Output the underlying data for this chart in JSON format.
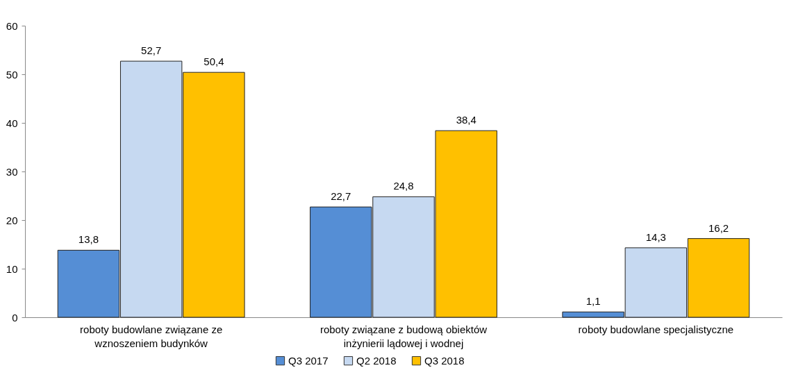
{
  "chart_data": {
    "type": "bar",
    "categories": [
      "roboty budowlane związane ze wznoszeniem budynków",
      "roboty związane z budową obiektów inżynierii lądowej i wodnej",
      "roboty budowlane specjalistyczne"
    ],
    "series": [
      {
        "name": "Q3 2017",
        "color": "#558ed5",
        "values": [
          13.8,
          22.7,
          1.1
        ],
        "value_labels": [
          "13,8",
          "22,7",
          "1,1"
        ]
      },
      {
        "name": "Q2 2018",
        "color": "#c6d9f1",
        "values": [
          52.7,
          24.8,
          14.3
        ],
        "value_labels": [
          "52,7",
          "24,8",
          "14,3"
        ]
      },
      {
        "name": "Q3 2018",
        "color": "#ffc000",
        "values": [
          50.4,
          38.4,
          16.2
        ],
        "value_labels": [
          "50,4",
          "38,4",
          "16,2"
        ]
      }
    ],
    "ylim": [
      0,
      60
    ],
    "yticks": [
      0,
      10,
      20,
      30,
      40,
      50,
      60
    ],
    "grid": false,
    "legend": "bottom"
  }
}
